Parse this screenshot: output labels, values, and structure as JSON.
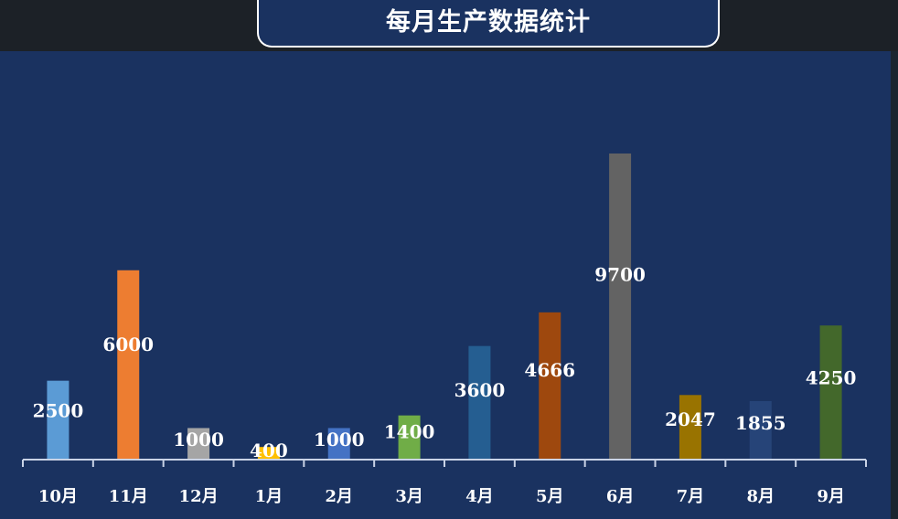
{
  "chart_data": {
    "type": "bar",
    "title": "每月生产数据统计",
    "categories": [
      "10月",
      "11月",
      "12月",
      "1月",
      "2月",
      "3月",
      "4月",
      "5月",
      "6月",
      "7月",
      "8月",
      "9月"
    ],
    "values": [
      2500,
      6000,
      1000,
      400,
      1000,
      1400,
      3600,
      4666,
      9700,
      2047,
      1855,
      4250
    ],
    "colors": [
      "#5b9bd5",
      "#ed7d31",
      "#a5a5a5",
      "#ffc000",
      "#4472c4",
      "#70ad47",
      "#255e91",
      "#9e480e",
      "#636363",
      "#997300",
      "#264478",
      "#43682b"
    ],
    "ylim": [
      0,
      9700
    ],
    "grid": false,
    "legend": "none"
  }
}
